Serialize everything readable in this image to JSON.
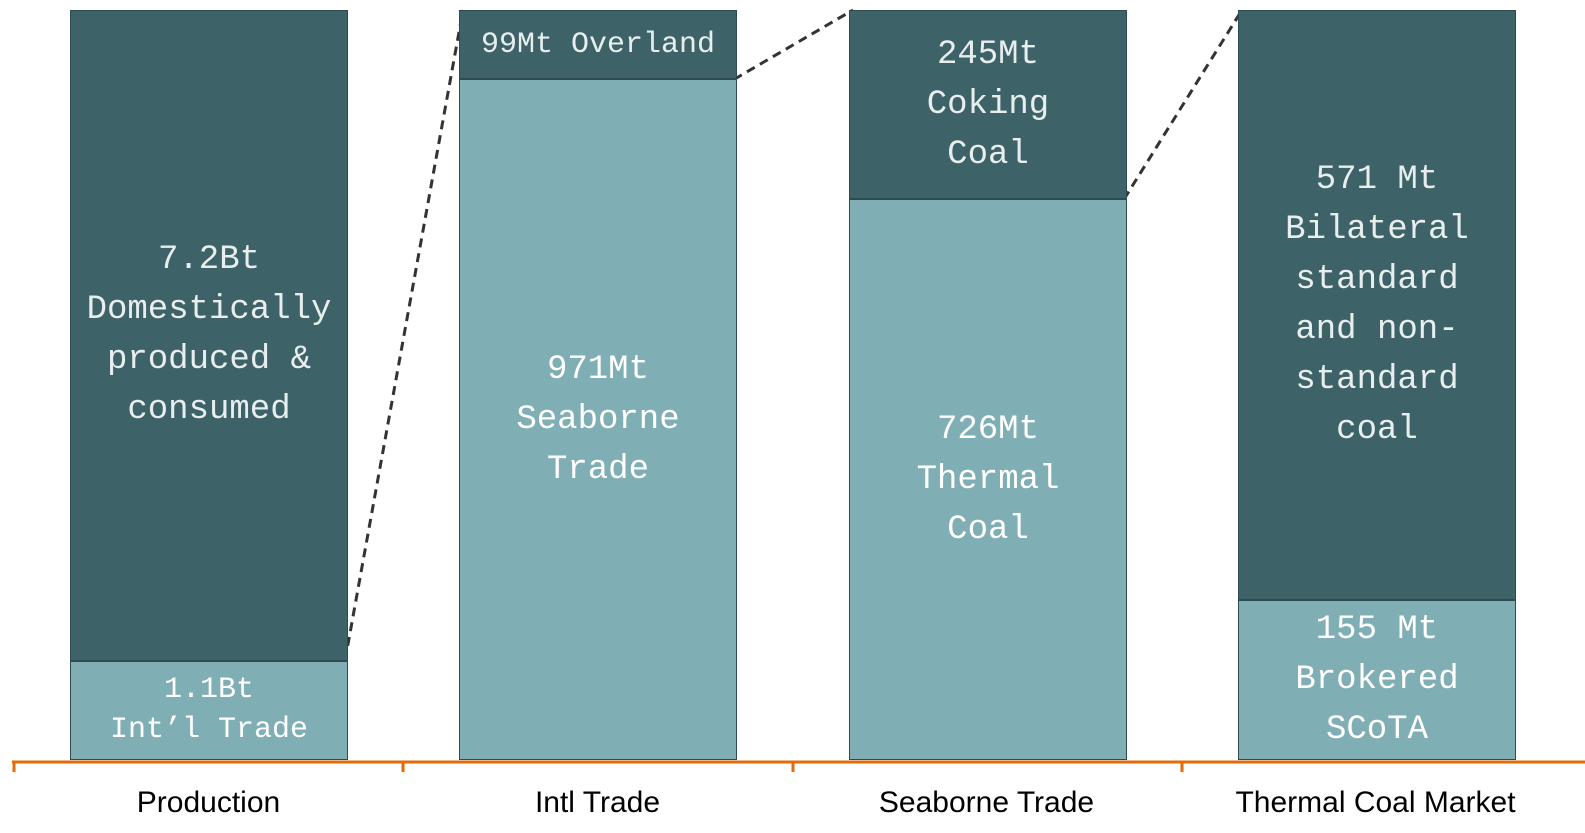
{
  "chart_data": {
    "type": "stacked_percent_bar",
    "categories": [
      "Production",
      "Intl Trade",
      "Seaborne Trade",
      "Thermal Coal Market"
    ],
    "series": [
      {
        "color": "#80aeb5",
        "values": [
          1.1,
          971,
          726,
          155
        ],
        "value_labels": [
          "1.1Bt\nInt’l Trade",
          "971Mt\nSeaborne\nTrade",
          "726Mt\nThermal\nCoal",
          "155 Mt\nBrokered\nSCoTA"
        ]
      },
      {
        "color": "#3d6268",
        "values": [
          7.2,
          99,
          245,
          571
        ],
        "value_labels": [
          "7.2Bt\nDomestically\nproduced &\nconsumed",
          "99Mt Overland",
          "245Mt\nCoking\nCoal",
          "571 Mt\nBilateral\nstandard\nand non-\nstandard\ncoal"
        ]
      }
    ],
    "axis_color": "#e36c0a"
  }
}
